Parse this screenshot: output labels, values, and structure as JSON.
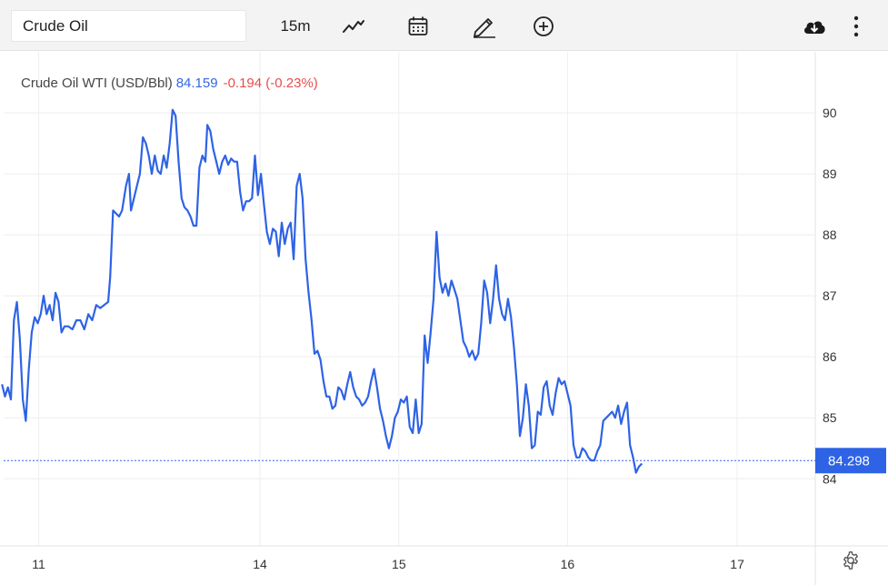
{
  "toolbar": {
    "symbol_value": "Crude Oil",
    "interval_label": "15m",
    "icons": [
      "line-chart-icon",
      "calendar-icon",
      "pencil-icon",
      "plus-circle-icon",
      "cloud-download-icon",
      "more-vertical-icon",
      "gear-icon"
    ]
  },
  "legend": {
    "name": "Crude Oil WTI (USD/Bbl)",
    "last": "84.159",
    "change": "-0.194 (-0.23%)"
  },
  "colors": {
    "line": "#2e63e6",
    "change_negative": "#e84c4c",
    "price_tag_bg": "#2e63e6",
    "grid": "#eeeeee"
  },
  "chart_data": {
    "type": "line",
    "title": "Crude Oil WTI (USD/Bbl)",
    "interval": "15m",
    "y_ticks": [
      84,
      85,
      86,
      87,
      88,
      89,
      90
    ],
    "ylim": [
      82.9,
      91.0
    ],
    "x_ticks": [
      {
        "label": "11",
        "t": 0.84
      },
      {
        "label": "14",
        "t": 3.07
      },
      {
        "label": "15",
        "t": 4.47
      },
      {
        "label": "16",
        "t": 6.17
      },
      {
        "label": "17",
        "t": 7.88
      }
    ],
    "xlim": [
      0.45,
      9.4
    ],
    "current_price": "84.298",
    "current_value": 84.298,
    "grid": true,
    "series": [
      {
        "points": [
          [
            0.47,
            85.55
          ],
          [
            0.5,
            85.35
          ],
          [
            0.53,
            85.5
          ],
          [
            0.56,
            85.3
          ],
          [
            0.59,
            86.6
          ],
          [
            0.62,
            86.9
          ],
          [
            0.65,
            86.3
          ],
          [
            0.68,
            85.3
          ],
          [
            0.71,
            84.95
          ],
          [
            0.74,
            85.8
          ],
          [
            0.77,
            86.4
          ],
          [
            0.8,
            86.65
          ],
          [
            0.83,
            86.55
          ],
          [
            0.86,
            86.7
          ],
          [
            0.89,
            87.0
          ],
          [
            0.92,
            86.7
          ],
          [
            0.95,
            86.85
          ],
          [
            0.98,
            86.6
          ],
          [
            1.01,
            87.05
          ],
          [
            1.04,
            86.9
          ],
          [
            1.07,
            86.4
          ],
          [
            1.1,
            86.5
          ],
          [
            1.14,
            86.5
          ],
          [
            1.18,
            86.45
          ],
          [
            1.22,
            86.6
          ],
          [
            1.26,
            86.6
          ],
          [
            1.3,
            86.45
          ],
          [
            1.34,
            86.7
          ],
          [
            1.38,
            86.6
          ],
          [
            1.42,
            86.85
          ],
          [
            1.46,
            86.8
          ],
          [
            1.5,
            86.85
          ],
          [
            1.54,
            86.9
          ],
          [
            1.56,
            87.3
          ],
          [
            1.59,
            88.4
          ],
          [
            1.62,
            88.35
          ],
          [
            1.65,
            88.3
          ],
          [
            1.68,
            88.4
          ],
          [
            1.72,
            88.8
          ],
          [
            1.75,
            89.0
          ],
          [
            1.77,
            88.4
          ],
          [
            1.8,
            88.6
          ],
          [
            1.83,
            88.8
          ],
          [
            1.86,
            89.0
          ],
          [
            1.89,
            89.6
          ],
          [
            1.92,
            89.5
          ],
          [
            1.95,
            89.3
          ],
          [
            1.98,
            89.0
          ],
          [
            2.01,
            89.3
          ],
          [
            2.04,
            89.05
          ],
          [
            2.07,
            89.0
          ],
          [
            2.1,
            89.3
          ],
          [
            2.13,
            89.1
          ],
          [
            2.16,
            89.5
          ],
          [
            2.19,
            90.05
          ],
          [
            2.22,
            89.95
          ],
          [
            2.25,
            89.2
          ],
          [
            2.28,
            88.6
          ],
          [
            2.31,
            88.45
          ],
          [
            2.34,
            88.4
          ],
          [
            2.37,
            88.3
          ],
          [
            2.4,
            88.15
          ],
          [
            2.43,
            88.15
          ],
          [
            2.46,
            89.1
          ],
          [
            2.49,
            89.3
          ],
          [
            2.52,
            89.2
          ],
          [
            2.54,
            89.8
          ],
          [
            2.57,
            89.7
          ],
          [
            2.6,
            89.4
          ],
          [
            2.63,
            89.2
          ],
          [
            2.66,
            89.0
          ],
          [
            2.69,
            89.2
          ],
          [
            2.72,
            89.3
          ],
          [
            2.75,
            89.15
          ],
          [
            2.78,
            89.25
          ],
          [
            2.81,
            89.2
          ],
          [
            2.84,
            89.2
          ],
          [
            2.87,
            88.7
          ],
          [
            2.9,
            88.4
          ],
          [
            2.93,
            88.55
          ],
          [
            2.96,
            88.55
          ],
          [
            2.99,
            88.6
          ],
          [
            3.02,
            89.3
          ],
          [
            3.05,
            88.65
          ],
          [
            3.08,
            89.0
          ],
          [
            3.11,
            88.5
          ],
          [
            3.14,
            88.05
          ],
          [
            3.17,
            87.85
          ],
          [
            3.2,
            88.1
          ],
          [
            3.23,
            88.05
          ],
          [
            3.26,
            87.65
          ],
          [
            3.29,
            88.2
          ],
          [
            3.32,
            87.85
          ],
          [
            3.35,
            88.1
          ],
          [
            3.38,
            88.2
          ],
          [
            3.41,
            87.6
          ],
          [
            3.44,
            88.8
          ],
          [
            3.47,
            89.0
          ],
          [
            3.5,
            88.6
          ],
          [
            3.53,
            87.6
          ],
          [
            3.56,
            87.05
          ],
          [
            3.59,
            86.6
          ],
          [
            3.62,
            86.05
          ],
          [
            3.65,
            86.1
          ],
          [
            3.68,
            85.95
          ],
          [
            3.71,
            85.6
          ],
          [
            3.74,
            85.35
          ],
          [
            3.77,
            85.35
          ],
          [
            3.8,
            85.15
          ],
          [
            3.83,
            85.2
          ],
          [
            3.86,
            85.5
          ],
          [
            3.89,
            85.45
          ],
          [
            3.92,
            85.3
          ],
          [
            3.95,
            85.55
          ],
          [
            3.98,
            85.75
          ],
          [
            4.01,
            85.5
          ],
          [
            4.04,
            85.35
          ],
          [
            4.07,
            85.3
          ],
          [
            4.1,
            85.2
          ],
          [
            4.13,
            85.25
          ],
          [
            4.16,
            85.35
          ],
          [
            4.19,
            85.6
          ],
          [
            4.22,
            85.8
          ],
          [
            4.25,
            85.5
          ],
          [
            4.28,
            85.15
          ],
          [
            4.31,
            84.95
          ],
          [
            4.34,
            84.7
          ],
          [
            4.37,
            84.5
          ],
          [
            4.4,
            84.7
          ],
          [
            4.43,
            85.0
          ],
          [
            4.46,
            85.1
          ],
          [
            4.49,
            85.3
          ],
          [
            4.52,
            85.25
          ],
          [
            4.55,
            85.35
          ],
          [
            4.58,
            84.85
          ],
          [
            4.61,
            84.75
          ],
          [
            4.64,
            85.3
          ],
          [
            4.67,
            84.75
          ],
          [
            4.7,
            84.9
          ],
          [
            4.73,
            86.35
          ],
          [
            4.76,
            85.9
          ],
          [
            4.79,
            86.4
          ],
          [
            4.82,
            86.95
          ],
          [
            4.85,
            88.05
          ],
          [
            4.88,
            87.3
          ],
          [
            4.91,
            87.05
          ],
          [
            4.94,
            87.2
          ],
          [
            4.97,
            87.0
          ],
          [
            5.0,
            87.25
          ],
          [
            5.03,
            87.1
          ],
          [
            5.06,
            86.95
          ],
          [
            5.09,
            86.6
          ],
          [
            5.12,
            86.25
          ],
          [
            5.15,
            86.15
          ],
          [
            5.18,
            86.0
          ],
          [
            5.21,
            86.1
          ],
          [
            5.24,
            85.95
          ],
          [
            5.27,
            86.05
          ],
          [
            5.3,
            86.55
          ],
          [
            5.33,
            87.25
          ],
          [
            5.36,
            87.05
          ],
          [
            5.39,
            86.55
          ],
          [
            5.42,
            86.95
          ],
          [
            5.45,
            87.5
          ],
          [
            5.48,
            86.95
          ],
          [
            5.51,
            86.7
          ],
          [
            5.54,
            86.6
          ],
          [
            5.57,
            86.95
          ],
          [
            5.6,
            86.65
          ],
          [
            5.63,
            86.15
          ],
          [
            5.66,
            85.55
          ],
          [
            5.69,
            84.7
          ],
          [
            5.72,
            85.0
          ],
          [
            5.75,
            85.55
          ],
          [
            5.78,
            85.2
          ],
          [
            5.81,
            84.5
          ],
          [
            5.84,
            84.55
          ],
          [
            5.87,
            85.1
          ],
          [
            5.9,
            85.05
          ],
          [
            5.93,
            85.5
          ],
          [
            5.96,
            85.6
          ],
          [
            5.99,
            85.2
          ],
          [
            6.02,
            85.05
          ],
          [
            6.05,
            85.4
          ],
          [
            6.08,
            85.65
          ],
          [
            6.11,
            85.55
          ],
          [
            6.14,
            85.6
          ],
          [
            6.17,
            85.4
          ],
          [
            6.2,
            85.2
          ],
          [
            6.23,
            84.55
          ],
          [
            6.26,
            84.35
          ],
          [
            6.29,
            84.35
          ],
          [
            6.32,
            84.5
          ],
          [
            6.35,
            84.45
          ],
          [
            6.38,
            84.35
          ],
          [
            6.41,
            84.3
          ],
          [
            6.44,
            84.3
          ],
          [
            6.47,
            84.45
          ],
          [
            6.5,
            84.55
          ],
          [
            6.53,
            84.95
          ],
          [
            6.56,
            85.0
          ],
          [
            6.59,
            85.05
          ],
          [
            6.62,
            85.1
          ],
          [
            6.65,
            85.0
          ],
          [
            6.68,
            85.2
          ],
          [
            6.71,
            84.9
          ],
          [
            6.74,
            85.1
          ],
          [
            6.77,
            85.25
          ],
          [
            6.8,
            84.55
          ],
          [
            6.83,
            84.35
          ],
          [
            6.86,
            84.1
          ],
          [
            6.89,
            84.2
          ],
          [
            6.92,
            84.25
          ]
        ]
      }
    ]
  }
}
